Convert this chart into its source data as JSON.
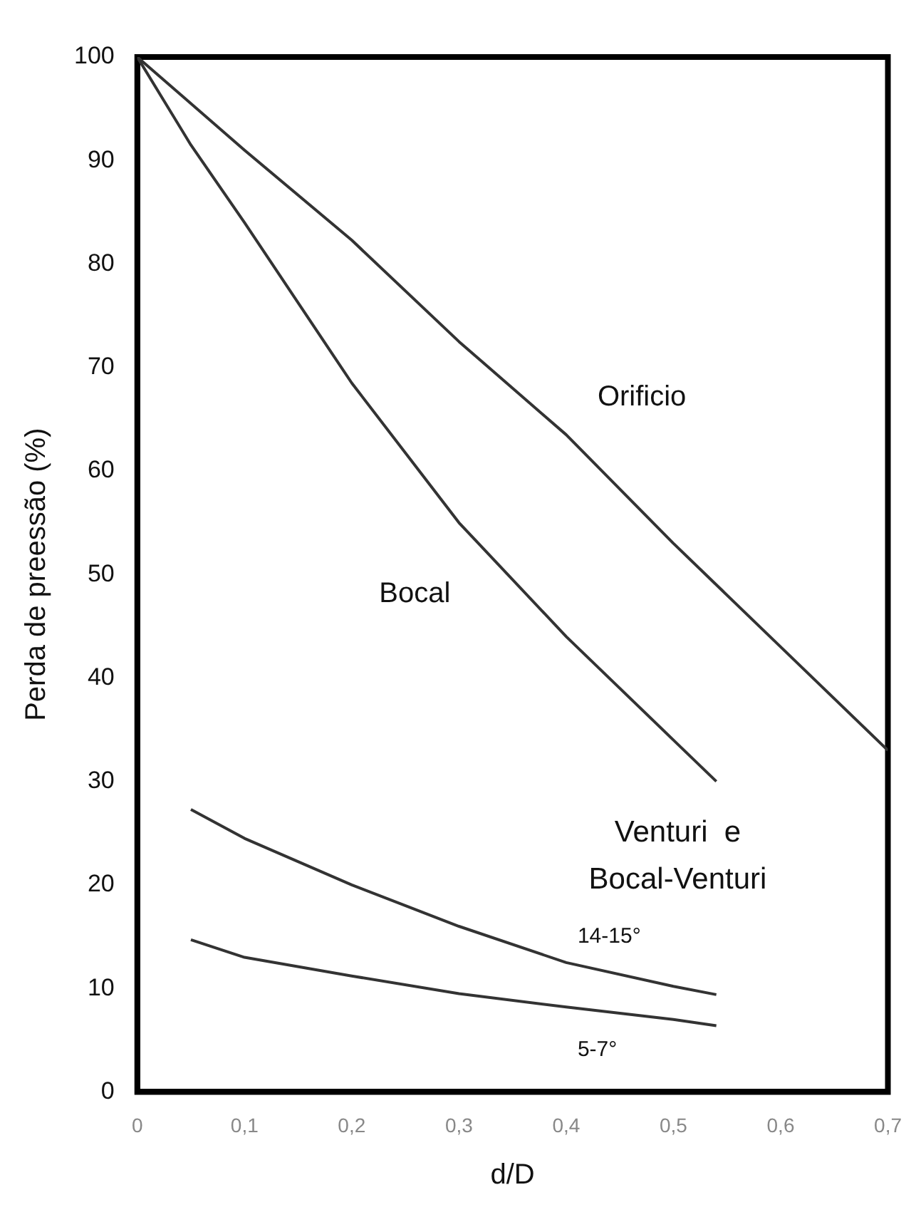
{
  "chart_data": {
    "type": "line",
    "xlabel": "d/D",
    "ylabel": "Perda de preessão (%)",
    "xlim": [
      0,
      0.7
    ],
    "xticks": [
      {
        "value": 0,
        "label": "0"
      },
      {
        "value": 0.1,
        "label": "0,1"
      },
      {
        "value": 0.2,
        "label": "0,2"
      },
      {
        "value": 0.3,
        "label": "0,3"
      },
      {
        "value": 0.4,
        "label": "0,4"
      },
      {
        "value": 0.5,
        "label": "0,5"
      },
      {
        "value": 0.6,
        "label": "0,6"
      },
      {
        "value": 0.7,
        "label": "0,7"
      }
    ],
    "ylim": [
      0,
      100
    ],
    "yticks": [
      0,
      10,
      20,
      30,
      40,
      50,
      60,
      70,
      80,
      90,
      100
    ],
    "grid": false,
    "legend": false,
    "marker": "none",
    "line_style": "solid",
    "annotations": [
      "Venturi  e\nBocal-Venturi"
    ],
    "series": [
      {
        "name": "Orificio",
        "color": "#333333",
        "x": [
          0,
          0.1,
          0.2,
          0.3,
          0.4,
          0.5,
          0.6,
          0.7
        ],
        "values": [
          100,
          91,
          82.3,
          72.5,
          63.5,
          53,
          43,
          33
        ]
      },
      {
        "name": "Bocal",
        "color": "#333333",
        "x": [
          0,
          0.05,
          0.1,
          0.2,
          0.3,
          0.4,
          0.5,
          0.54
        ],
        "values": [
          100,
          91.5,
          84,
          68.5,
          55,
          44,
          34,
          30
        ]
      },
      {
        "name": "14-15°",
        "color": "#333333",
        "x": [
          0.05,
          0.1,
          0.2,
          0.3,
          0.4,
          0.5,
          0.54
        ],
        "values": [
          27.3,
          24.5,
          20,
          16,
          12.5,
          10.2,
          9.4
        ]
      },
      {
        "name": "5-7°",
        "color": "#333333",
        "x": [
          0.05,
          0.1,
          0.2,
          0.3,
          0.4,
          0.5,
          0.54
        ],
        "values": [
          14.7,
          13,
          11.2,
          9.5,
          8.2,
          7,
          6.4
        ]
      }
    ]
  }
}
